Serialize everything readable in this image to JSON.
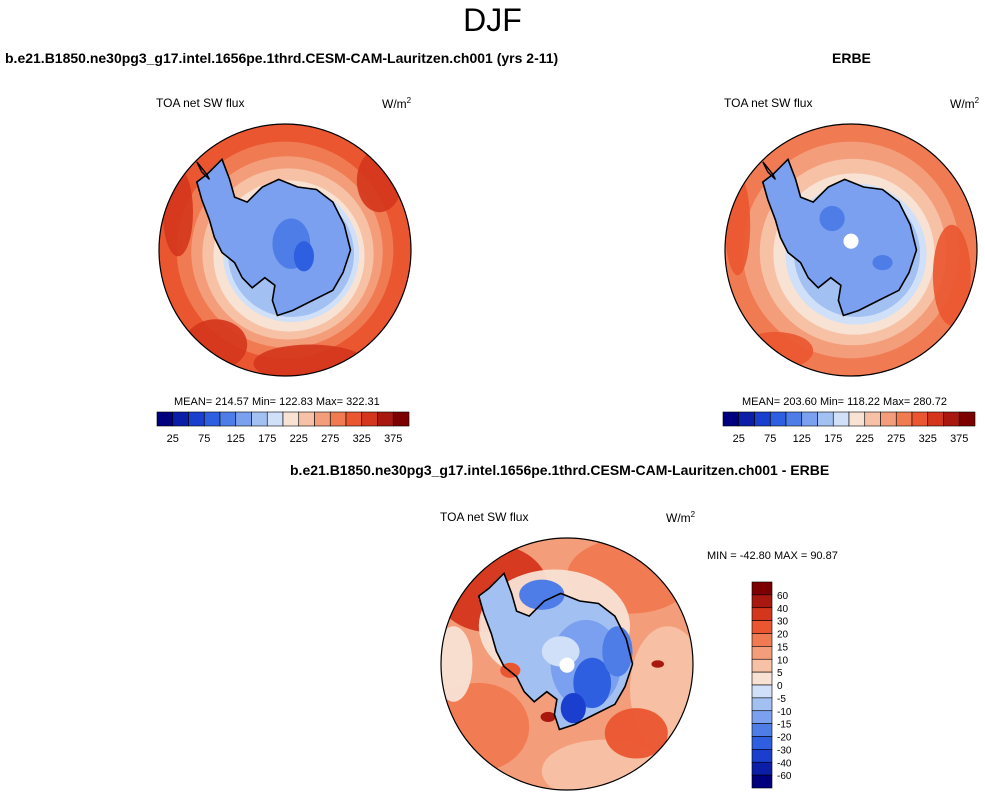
{
  "page": {
    "title": "DJF",
    "diff_title": "b.e21.B1850.ne30pg3_g17.intel.1656pe.1thrd.CESM-CAM-Lauritzen.ch001 - ERBE"
  },
  "chart_data": [
    {
      "type": "heatmap",
      "projection": "south-polar-stereographic",
      "title": "b.e21.B1850.ne30pg3_g17.intel.1656pe.1thrd.CESM-CAM-Lauritzen.ch001 (yrs 2-11)",
      "variable": "TOA net SW flux",
      "units": "W/m",
      "units_sup": "2",
      "stats": {
        "mean": "214.57",
        "min": "122.83",
        "max": "322.31"
      },
      "stats_text": "MEAN= 214.57  Min= 122.83  Max= 322.31",
      "levels": [
        25,
        50,
        75,
        100,
        125,
        150,
        175,
        200,
        225,
        250,
        275,
        300,
        325,
        350,
        375
      ],
      "tick_labels": [
        "25",
        "75",
        "125",
        "175",
        "225",
        "275",
        "325",
        "375"
      ]
    },
    {
      "type": "heatmap",
      "projection": "south-polar-stereographic",
      "title": "ERBE",
      "variable": "TOA net SW flux",
      "units": "W/m",
      "units_sup": "2",
      "stats": {
        "mean": "203.60",
        "min": "118.22",
        "max": "280.72"
      },
      "stats_text": "MEAN= 203.60  Min= 118.22  Max= 280.72",
      "levels": [
        25,
        50,
        75,
        100,
        125,
        150,
        175,
        200,
        225,
        250,
        275,
        300,
        325,
        350,
        375
      ],
      "tick_labels": [
        "25",
        "75",
        "125",
        "175",
        "225",
        "275",
        "325",
        "375"
      ]
    },
    {
      "type": "heatmap",
      "projection": "south-polar-stereographic",
      "title": "b.e21.B1850.ne30pg3_g17.intel.1656pe.1thrd.CESM-CAM-Lauritzen.ch001 - ERBE",
      "variable": "TOA net SW flux",
      "units": "W/m",
      "units_sup": "2",
      "stats": {
        "min": "-42.80",
        "max": "90.87"
      },
      "stats_text": "MIN = -42.80 MAX =  90.87",
      "levels": [
        -60,
        -40,
        -30,
        -20,
        -15,
        -10,
        -5,
        0,
        5,
        10,
        15,
        20,
        30,
        40,
        60
      ],
      "tick_labels": [
        "60",
        "40",
        "30",
        "20",
        "15",
        "10",
        "5",
        "0",
        "-5",
        "-10",
        "-15",
        "-20",
        "-30",
        "-40",
        "-60"
      ]
    }
  ],
  "colors": {
    "scale": [
      "#00007f",
      "#0a1ea8",
      "#1a3fcf",
      "#2e5fe0",
      "#4f7de8",
      "#7aa0ef",
      "#a3c0f3",
      "#cfe0f8",
      "#f8e2d4",
      "#f7c1a5",
      "#f49d7a",
      "#f07a52",
      "#ea5630",
      "#d4361c",
      "#a8180e",
      "#7d0000"
    ],
    "land_outline": "#000000"
  }
}
